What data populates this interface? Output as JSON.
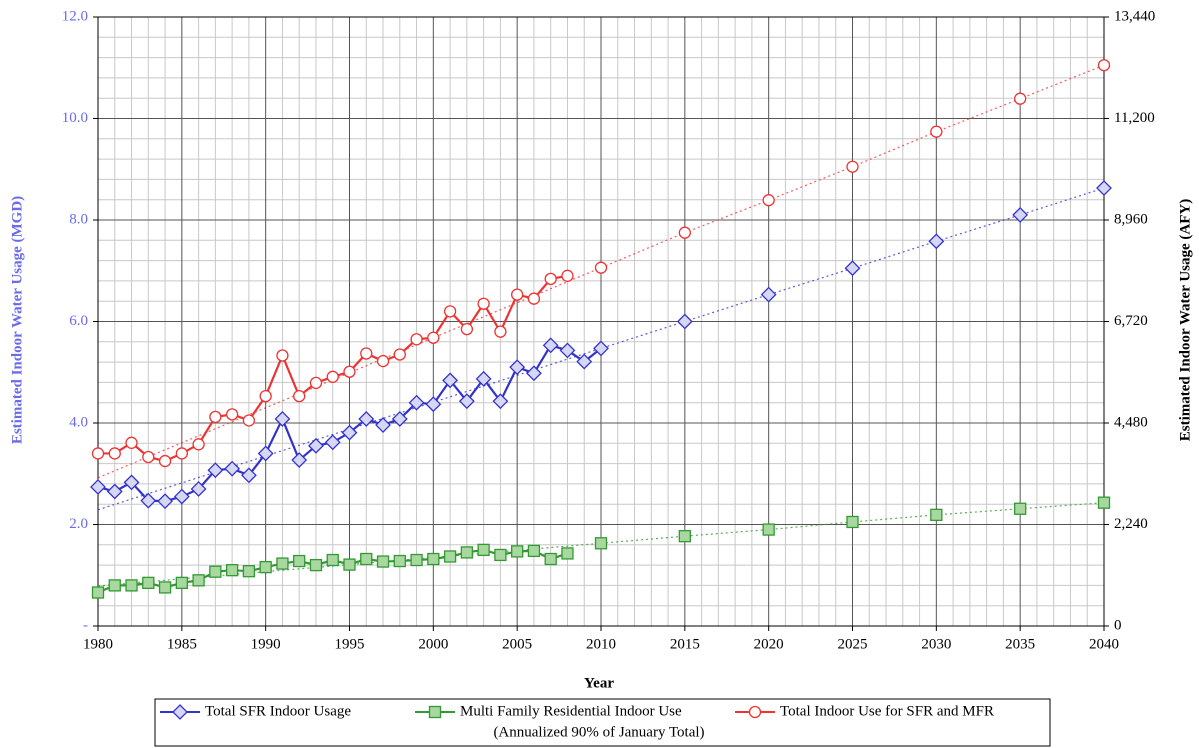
{
  "chart_data": {
    "type": "line",
    "xlabel": "Year",
    "ylabel": "Estimated Indoor Water Usage (MGD)",
    "y2label": "Estimated Indoor Water Usage (AFY)",
    "xlim": [
      1980,
      2040
    ],
    "xticks": [
      1980,
      1985,
      1990,
      1995,
      2000,
      2005,
      2010,
      2015,
      2020,
      2025,
      2030,
      2035,
      2040
    ],
    "ylim": [
      0,
      12
    ],
    "yticks": [
      {
        "value": 0,
        "label": "-"
      },
      {
        "value": 2,
        "label": "2.0"
      },
      {
        "value": 4,
        "label": "4.0"
      },
      {
        "value": 6,
        "label": "6.0"
      },
      {
        "value": 8,
        "label": "8.0"
      },
      {
        "value": 10,
        "label": "10.0"
      },
      {
        "value": 12,
        "label": "12.0"
      }
    ],
    "y2lim": [
      0,
      13440
    ],
    "y2ticks": [
      0,
      {
        "value": 2240,
        "label": "2,240"
      },
      {
        "value": 4480,
        "label": "4,480"
      },
      {
        "value": 6720,
        "label": "6,720"
      },
      {
        "value": 8960,
        "label": "8,960"
      },
      {
        "value": 11200,
        "label": "11,200"
      },
      {
        "value": 13440,
        "label": "13,440"
      }
    ],
    "grid": true,
    "legend": "bottom",
    "legend_note": "(Annualized 90% of January Total)",
    "series": [
      {
        "name": "Total SFR Indoor Usage",
        "color": "#3333cc",
        "marker": "diamond",
        "x": [
          1980,
          1981,
          1982,
          1983,
          1984,
          1985,
          1986,
          1987,
          1988,
          1989,
          1990,
          1991,
          1992,
          1993,
          1994,
          1995,
          1996,
          1997,
          1998,
          1999,
          2000,
          2001,
          2002,
          2003,
          2004,
          2005,
          2006,
          2007,
          2008,
          2009,
          2010,
          2015,
          2020,
          2025,
          2030,
          2035,
          2040
        ],
        "values": [
          2.74,
          2.65,
          2.83,
          2.47,
          2.46,
          2.55,
          2.7,
          3.07,
          3.1,
          2.97,
          3.4,
          4.08,
          3.27,
          3.55,
          3.62,
          3.81,
          4.08,
          3.96,
          4.08,
          4.4,
          4.37,
          4.84,
          4.43,
          4.87,
          4.43,
          5.1,
          4.98,
          5.53,
          5.43,
          5.21,
          5.47,
          6.0,
          6.53,
          7.05,
          7.58,
          8.1,
          8.63
        ]
      },
      {
        "name": "Multi Family Residential Indoor Use",
        "color": "#339933",
        "marker": "square",
        "x": [
          1980,
          1981,
          1982,
          1983,
          1984,
          1985,
          1986,
          1987,
          1988,
          1989,
          1990,
          1991,
          1992,
          1993,
          1994,
          1995,
          1996,
          1997,
          1998,
          1999,
          2000,
          2001,
          2002,
          2003,
          2004,
          2005,
          2006,
          2007,
          2008,
          2009,
          2010,
          2015,
          2020,
          2025,
          2030,
          2035,
          2040
        ],
        "values": [
          0.66,
          0.8,
          0.8,
          0.85,
          0.76,
          0.85,
          0.9,
          1.07,
          1.1,
          1.08,
          1.16,
          1.23,
          1.28,
          1.2,
          1.3,
          1.21,
          1.32,
          1.27,
          1.28,
          1.3,
          1.32,
          1.37,
          1.45,
          1.5,
          1.4,
          1.47,
          1.48,
          1.32,
          1.43,
          null,
          1.63,
          1.77,
          1.9,
          2.05,
          2.19,
          2.31,
          2.43
        ]
      },
      {
        "name": "Total Indoor Use for SFR and MFR",
        "color": "#ee3333",
        "marker": "circle",
        "x": [
          1980,
          1981,
          1982,
          1983,
          1984,
          1985,
          1986,
          1987,
          1988,
          1989,
          1990,
          1991,
          1992,
          1993,
          1994,
          1995,
          1996,
          1997,
          1998,
          1999,
          2000,
          2001,
          2002,
          2003,
          2004,
          2005,
          2006,
          2007,
          2008,
          2009,
          2010,
          2015,
          2020,
          2025,
          2030,
          2035,
          2040
        ],
        "values": [
          3.4,
          3.4,
          3.61,
          3.33,
          3.25,
          3.4,
          3.58,
          4.12,
          4.17,
          4.05,
          4.53,
          5.33,
          4.53,
          4.79,
          4.91,
          5.01,
          5.37,
          5.22,
          5.35,
          5.65,
          5.68,
          6.2,
          5.85,
          6.35,
          5.8,
          6.53,
          6.45,
          6.84,
          6.9,
          null,
          7.06,
          7.75,
          8.39,
          9.05,
          9.74,
          10.39,
          11.05
        ]
      }
    ]
  }
}
